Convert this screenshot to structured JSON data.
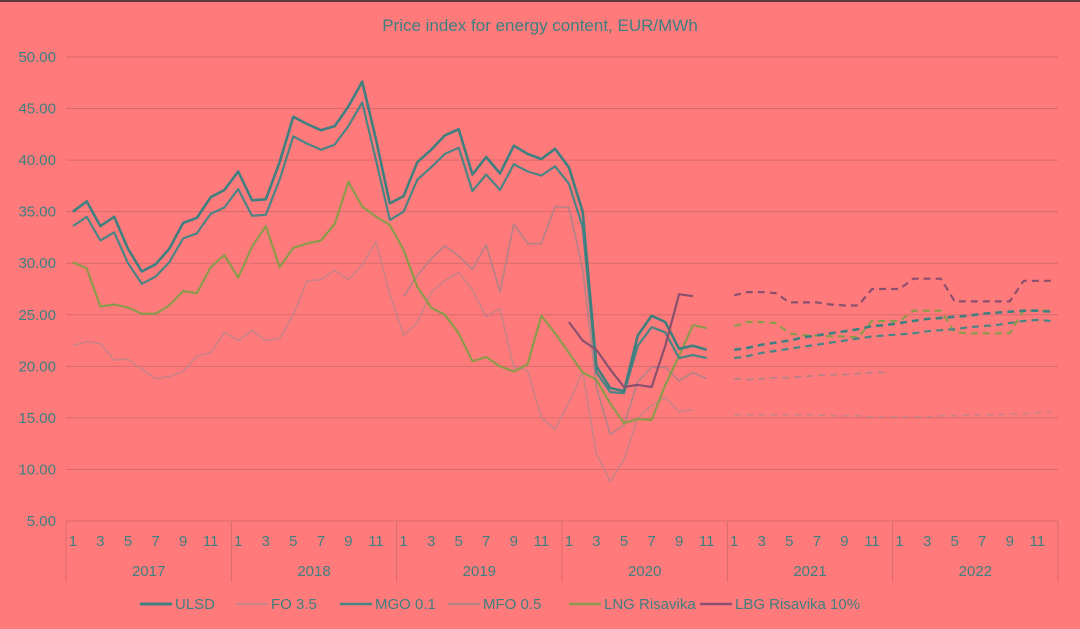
{
  "chart_data": {
    "type": "line",
    "title": "Price index for energy content, EUR/MWh",
    "xlabel": "",
    "ylabel": "",
    "ylim": [
      5,
      50
    ],
    "yticks": [
      "50.00",
      "45.00",
      "40.00",
      "35.00",
      "30.00",
      "25.00",
      "20.00",
      "15.00",
      "10.00",
      "5.00"
    ],
    "ytick_values": [
      50,
      45,
      40,
      35,
      30,
      25,
      20,
      15,
      10,
      5
    ],
    "grid": true,
    "legend_position": "bottom",
    "years": [
      "2017",
      "2018",
      "2019",
      "2020",
      "2021",
      "2022"
    ],
    "month_tick_labels": [
      "1",
      "3",
      "5",
      "7",
      "9",
      "11"
    ],
    "months_per_year": 12,
    "series": [
      {
        "name": "ULSD",
        "color": "#3f7f80",
        "width": 2.6,
        "actual_start": 0,
        "actual": [
          35.0,
          36.0,
          33.6,
          34.5,
          31.4,
          29.2,
          29.9,
          31.4,
          33.9,
          34.4,
          36.4,
          37.1,
          38.9,
          36.1,
          36.2,
          39.8,
          44.2,
          43.5,
          42.9,
          43.3,
          45.2,
          47.6,
          42.0,
          35.8,
          36.5,
          39.8,
          41.0,
          42.4,
          43.0,
          38.6,
          40.3,
          38.7,
          41.4,
          40.6,
          40.1,
          41.1,
          39.3,
          35.0,
          20.0,
          17.9,
          17.6,
          23.0,
          24.9,
          24.3,
          21.7,
          22.0,
          21.6
        ],
        "forecast_start": 48,
        "forecast": [
          21.6,
          21.8,
          22.1,
          22.3,
          22.5,
          22.8,
          23.0,
          23.2,
          23.4,
          23.6,
          23.9,
          24.0,
          24.2,
          24.4,
          24.6,
          24.7,
          24.8,
          24.9,
          25.1,
          25.2,
          25.3,
          25.4,
          25.4,
          25.3
        ]
      },
      {
        "name": "FO 3.5",
        "color": "#c98286",
        "width": 1.6,
        "actual_start": 0,
        "actual": [
          22.0,
          22.4,
          22.2,
          20.6,
          20.7,
          19.7,
          18.8,
          19.0,
          19.5,
          21.0,
          21.3,
          23.3,
          22.5,
          23.5,
          22.5,
          22.7,
          25.0,
          28.3,
          28.4,
          29.3,
          28.4,
          29.8,
          32.1,
          27.0,
          23.0,
          24.2,
          27.2,
          28.3,
          29.1,
          27.4,
          24.8,
          25.6,
          19.9,
          19.6,
          15.0,
          13.9,
          16.5,
          19.5,
          11.5,
          8.8,
          11.0,
          15.0,
          16.2,
          17.0,
          15.6,
          15.8
        ],
        "forecast_start": 48,
        "forecast": [
          15.3,
          15.3,
          15.3,
          15.3,
          15.3,
          15.3,
          15.3,
          15.2,
          15.2,
          15.2,
          15.1,
          15.1,
          15.1,
          15.1,
          15.1,
          15.2,
          15.2,
          15.3,
          15.3,
          15.3,
          15.4,
          15.4,
          15.5,
          15.5
        ]
      },
      {
        "name": "MGO 0.1",
        "color": "#4a8485",
        "width": 2.2,
        "actual_start": 0,
        "actual": [
          33.6,
          34.5,
          32.2,
          33.0,
          30.0,
          28.0,
          28.7,
          30.1,
          32.4,
          32.9,
          34.8,
          35.4,
          37.2,
          34.6,
          34.7,
          38.1,
          42.3,
          41.6,
          41.0,
          41.5,
          43.3,
          45.6,
          40.0,
          34.2,
          35.0,
          38.1,
          39.3,
          40.6,
          41.2,
          37.0,
          38.6,
          37.1,
          39.6,
          38.9,
          38.5,
          39.4,
          37.7,
          33.5,
          19.4,
          17.5,
          17.4,
          22.0,
          23.8,
          23.3,
          20.8,
          21.1,
          20.8
        ],
        "forecast_start": 48,
        "forecast": [
          20.8,
          21.0,
          21.3,
          21.5,
          21.7,
          21.9,
          22.1,
          22.3,
          22.5,
          22.7,
          22.9,
          23.0,
          23.1,
          23.2,
          23.4,
          23.5,
          23.6,
          23.8,
          23.9,
          24.0,
          24.2,
          24.4,
          24.5,
          24.4
        ]
      },
      {
        "name": "MFO 0.5",
        "color": "#b98086",
        "width": 1.8,
        "actual_start": 24,
        "actual": [
          26.8,
          28.8,
          30.4,
          31.7,
          30.7,
          29.4,
          31.8,
          27.2,
          33.8,
          31.9,
          31.9,
          35.5,
          35.4,
          29.4,
          18.0,
          13.4,
          14.3,
          18.5,
          19.9,
          19.9,
          18.6,
          19.4,
          18.8
        ],
        "forecast_start": 48,
        "forecast": [
          18.8,
          18.7,
          18.8,
          18.9,
          18.9,
          19.0,
          19.1,
          19.2,
          19.2,
          19.3,
          19.4,
          19.4
        ]
      },
      {
        "name": "LNG Risavika",
        "color": "#8c9a4c",
        "width": 2.2,
        "actual_start": 0,
        "actual": [
          30.1,
          29.5,
          25.8,
          26.0,
          25.7,
          25.1,
          25.1,
          25.9,
          27.3,
          27.1,
          29.6,
          30.8,
          28.6,
          31.6,
          33.6,
          29.6,
          31.5,
          31.9,
          32.2,
          33.8,
          37.9,
          35.5,
          34.5,
          33.7,
          31.3,
          27.7,
          25.7,
          25.0,
          23.2,
          20.5,
          20.9,
          20.0,
          19.5,
          20.2,
          24.9,
          23.2,
          21.3,
          19.4,
          18.7,
          16.4,
          14.5,
          14.9,
          14.8,
          18.2,
          21.0,
          24.0,
          23.7
        ],
        "forecast_start": 48,
        "forecast": [
          23.9,
          24.3,
          24.3,
          24.2,
          23.2,
          23.0,
          23.0,
          22.9,
          22.9,
          22.8,
          24.4,
          24.4,
          24.4,
          25.4,
          25.4,
          25.4,
          23.3,
          23.2,
          23.2,
          23.2,
          23.2,
          25.4,
          25.4,
          25.4
        ]
      },
      {
        "name": "LBG Risavika 10%",
        "color": "#8a506e",
        "width": 2.2,
        "actual_start": 36,
        "actual": [
          24.3,
          22.5,
          21.6,
          19.7,
          18.0,
          18.2,
          18.0,
          22.0,
          27.0,
          26.8
        ],
        "forecast_start": 48,
        "forecast": [
          26.9,
          27.2,
          27.2,
          27.1,
          26.2,
          26.2,
          26.2,
          26.0,
          25.9,
          25.9,
          27.5,
          27.5,
          27.5,
          28.5,
          28.5,
          28.5,
          26.3,
          26.3,
          26.3,
          26.3,
          26.3,
          28.3,
          28.3,
          28.3
        ]
      }
    ]
  }
}
